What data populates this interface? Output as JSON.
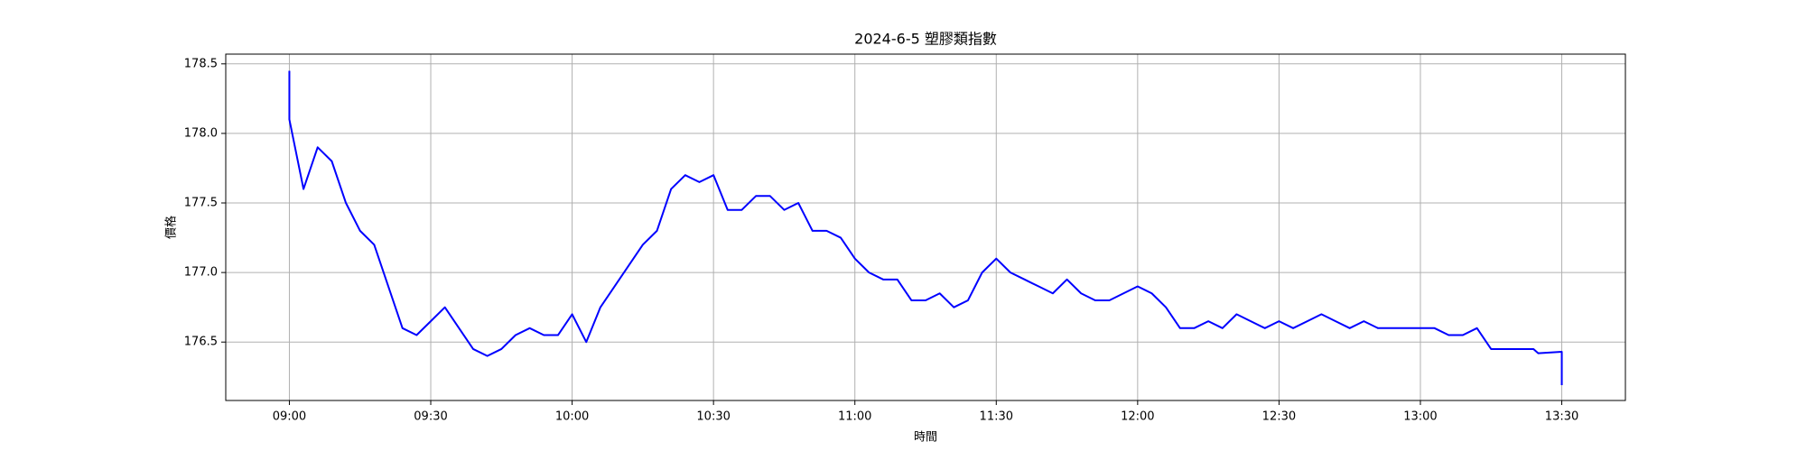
{
  "chart_data": {
    "type": "line",
    "title": "2024-6-5 塑膠類指數",
    "x_label": "時間",
    "y_label": "價格",
    "x": [
      "09:00",
      "09:00",
      "09:03",
      "09:06",
      "09:09",
      "09:12",
      "09:15",
      "09:18",
      "09:21",
      "09:24",
      "09:27",
      "09:30",
      "09:33",
      "09:36",
      "09:39",
      "09:42",
      "09:45",
      "09:48",
      "09:51",
      "09:54",
      "09:57",
      "10:00",
      "10:03",
      "10:06",
      "10:09",
      "10:12",
      "10:15",
      "10:18",
      "10:21",
      "10:24",
      "10:27",
      "10:30",
      "10:33",
      "10:36",
      "10:39",
      "10:42",
      "10:45",
      "10:48",
      "10:51",
      "10:54",
      "10:57",
      "11:00",
      "11:03",
      "11:06",
      "11:09",
      "11:12",
      "11:15",
      "11:18",
      "11:21",
      "11:24",
      "11:27",
      "11:30",
      "11:33",
      "11:36",
      "11:39",
      "11:42",
      "11:45",
      "11:48",
      "11:51",
      "11:54",
      "11:57",
      "12:00",
      "12:03",
      "12:06",
      "12:09",
      "12:12",
      "12:15",
      "12:18",
      "12:21",
      "12:24",
      "12:27",
      "12:30",
      "12:33",
      "12:36",
      "12:39",
      "12:42",
      "12:45",
      "12:48",
      "12:51",
      "12:54",
      "12:57",
      "13:00",
      "13:03",
      "13:06",
      "13:09",
      "13:12",
      "13:15",
      "13:18",
      "13:21",
      "13:24",
      "13:25",
      "13:30",
      "13:30"
    ],
    "series": [
      {
        "name": "價格",
        "color": "#0000ff",
        "values": [
          178.45,
          178.1,
          177.6,
          177.9,
          177.8,
          177.5,
          177.3,
          177.2,
          176.9,
          176.6,
          176.55,
          176.65,
          176.75,
          176.6,
          176.45,
          176.4,
          176.45,
          176.55,
          176.6,
          176.55,
          176.55,
          176.7,
          176.5,
          176.75,
          176.9,
          177.05,
          177.2,
          177.3,
          177.6,
          177.7,
          177.65,
          177.7,
          177.45,
          177.45,
          177.55,
          177.55,
          177.45,
          177.5,
          177.3,
          177.3,
          177.25,
          177.1,
          177.0,
          176.95,
          176.95,
          176.8,
          176.8,
          176.85,
          176.75,
          176.8,
          177.0,
          177.1,
          177.0,
          176.95,
          176.9,
          176.85,
          176.95,
          176.85,
          176.8,
          176.8,
          176.85,
          176.9,
          176.85,
          176.75,
          176.6,
          176.6,
          176.65,
          176.6,
          176.7,
          176.65,
          176.6,
          176.65,
          176.6,
          176.65,
          176.7,
          176.65,
          176.6,
          176.65,
          176.6,
          176.6,
          176.6,
          176.6,
          176.6,
          176.55,
          176.55,
          176.6,
          176.45,
          176.45,
          176.45,
          176.45,
          176.42,
          176.43,
          176.19
        ]
      }
    ],
    "xlim": [
      "08:46:30",
      "13:43:30"
    ],
    "xticks": [
      "09:00",
      "09:30",
      "10:00",
      "10:30",
      "11:00",
      "11:30",
      "12:00",
      "12:30",
      "13:00",
      "13:30"
    ],
    "ylim": [
      176.08,
      178.57
    ],
    "yticks": [
      176.5,
      {
        "value": 177.0,
        "label": "177.0"
      },
      177.5,
      {
        "value": 178.0,
        "label": "178.0"
      },
      178.5
    ],
    "grid": true
  }
}
